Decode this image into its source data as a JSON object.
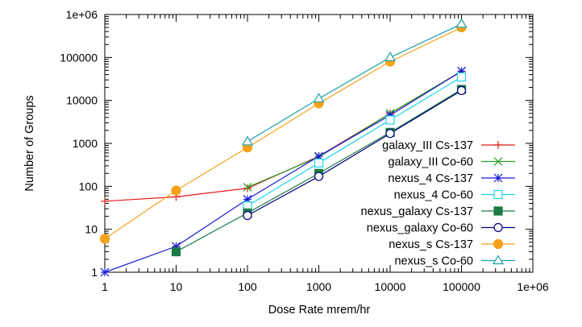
{
  "chart_data": {
    "type": "line",
    "xlabel": "Dose Rate mrem/hr",
    "ylabel": "Number of Groups",
    "xscale": "log",
    "yscale": "log",
    "xlim": [
      1,
      1000000
    ],
    "ylim": [
      1,
      1000000
    ],
    "x_ticks": [
      1,
      10,
      100,
      1000,
      10000,
      100000,
      1000000
    ],
    "x_tick_labels": [
      "1",
      "10",
      "100",
      "1000",
      "10000",
      "100000",
      "1e+06"
    ],
    "y_ticks": [
      1,
      10,
      100,
      1000,
      10000,
      100000,
      1000000
    ],
    "y_tick_labels": [
      "1",
      "10",
      "100",
      "1000",
      "10000",
      "100000",
      "1e+06"
    ],
    "grid": false,
    "legend_position": "right-center",
    "series": [
      {
        "name": "galaxy_III Cs-137",
        "color": "#e41a1c",
        "marker": "plus",
        "x": [
          1,
          10,
          100,
          1000,
          10000,
          100000
        ],
        "y": [
          45,
          57,
          90,
          500,
          5000,
          47000
        ]
      },
      {
        "name": "galaxy_III Co-60",
        "color": "#22a022",
        "marker": "x",
        "x": [
          100,
          1000,
          10000,
          100000
        ],
        "y": [
          95,
          480,
          5000,
          48000
        ]
      },
      {
        "name": "nexus_4 Cs-137",
        "color": "#1a1ad6",
        "marker": "star",
        "x": [
          1,
          10,
          100,
          1000,
          10000,
          100000
        ],
        "y": [
          1,
          4,
          50,
          500,
          4500,
          48000
        ]
      },
      {
        "name": "nexus_4 Co-60",
        "color": "#1ad4ee",
        "marker": "square-open",
        "x": [
          100,
          1000,
          10000,
          100000
        ],
        "y": [
          35,
          350,
          3500,
          35000
        ]
      },
      {
        "name": "nexus_galaxy Cs-137",
        "color": "#1a7a42",
        "marker": "square-filled",
        "x": [
          10,
          100,
          1000,
          10000,
          100000
        ],
        "y": [
          3,
          24,
          200,
          1800,
          18000
        ]
      },
      {
        "name": "nexus_galaxy Co-60",
        "color": "#000080",
        "marker": "circle-open",
        "x": [
          100,
          1000,
          10000,
          100000
        ],
        "y": [
          21,
          170,
          1700,
          17000
        ]
      },
      {
        "name": "nexus_s Cs-137",
        "color": "#f5a11a",
        "marker": "circle-filled",
        "x": [
          1,
          10,
          100,
          1000,
          10000,
          100000
        ],
        "y": [
          6,
          80,
          800,
          8500,
          80000,
          500000
        ]
      },
      {
        "name": "nexus_s Co-60",
        "color": "#1aa0a8",
        "marker": "triangle-open",
        "x": [
          100,
          1000,
          10000,
          100000
        ],
        "y": [
          1100,
          11000,
          100000,
          600000
        ]
      }
    ]
  }
}
